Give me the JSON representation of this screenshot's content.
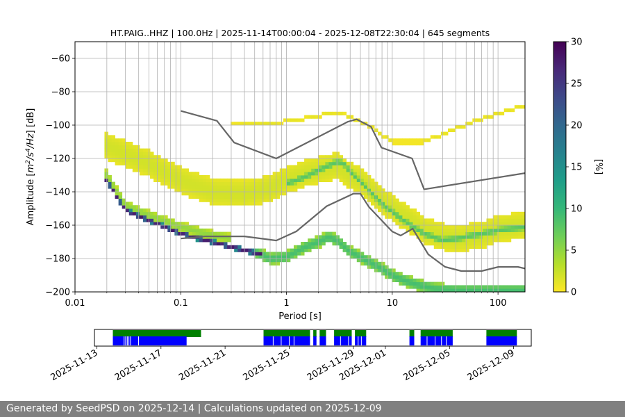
{
  "chart_data": [
    {
      "type": "heatmap",
      "title": "HT.PAIG..HHZ | 100.0Hz | 2025-11-14T00:00:04 - 2025-12-08T22:30:04 | 645 segments",
      "xlabel": "Period [s]",
      "ylabel_parts": [
        "Amplitude [",
        "m",
        "2",
        "/",
        "s",
        "4",
        "/",
        "Hz",
        "] [dB]"
      ],
      "xscale": "log",
      "xlim": [
        0.01,
        180
      ],
      "ylim": [
        -200,
        -50
      ],
      "x_ticks": [
        0.01,
        0.1,
        1,
        10,
        100
      ],
      "x_tick_labels": [
        "0.01",
        "0.1",
        "1",
        "10",
        "100"
      ],
      "y_ticks": [
        -200,
        -180,
        -160,
        -140,
        -120,
        -100,
        -80,
        -60
      ],
      "y_tick_labels": [
        "−200",
        "−180",
        "−160",
        "−140",
        "−120",
        "−100",
        "−80",
        "−60"
      ],
      "grid": true,
      "colorbar": {
        "label": "[%]",
        "range": [
          0,
          30
        ],
        "ticks": [
          0,
          5,
          10,
          15,
          20,
          25,
          30
        ],
        "tick_labels": [
          "0",
          "5",
          "10",
          "15",
          "20",
          "25",
          "30"
        ],
        "colormap": [
          "#fde725",
          "#b5de2b",
          "#6ece58",
          "#35b779",
          "#1f9e89",
          "#26828e",
          "#31688e",
          "#3e4989",
          "#482878",
          "#440154"
        ]
      },
      "nhnm": {
        "name": "NHNM",
        "color": "#666666",
        "x": [
          0.1,
          0.22,
          0.32,
          0.8,
          3.8,
          4.6,
          6.3,
          7.9,
          15.4,
          20,
          180
        ],
        "y": [
          -91.5,
          -97.4,
          -110.5,
          -120,
          -98,
          -96.5,
          -101,
          -113.5,
          -120,
          -138.5,
          -128.8
        ]
      },
      "nlnm": {
        "name": "NLNM",
        "color": "#666666",
        "x": [
          0.1,
          0.17,
          0.4,
          0.8,
          1.24,
          2.4,
          4.3,
          5,
          6,
          10,
          12,
          15.6,
          21.9,
          31.6,
          45,
          70,
          101,
          154,
          180
        ],
        "y": [
          -168,
          -166.7,
          -166.7,
          -169.2,
          -163.7,
          -148.6,
          -141.1,
          -141.1,
          -149,
          -163.8,
          -166.2,
          -162.1,
          -177.5,
          -185,
          -187.5,
          -187.5,
          -185,
          -185,
          -186
        ]
      },
      "density_bands": [
        {
          "name": "minimum-psd-edge",
          "x": [
            0.019,
            0.03,
            0.05,
            0.1,
            0.2,
            0.4,
            0.6
          ],
          "y": [
            -131,
            -151,
            -157,
            -165,
            -170,
            -175,
            -177.5
          ],
          "halfwidth_db": 1.5,
          "percent": 28
        },
        {
          "name": "secondary-low-band",
          "x": [
            0.019,
            0.03,
            0.05,
            0.1,
            0.2,
            0.3
          ],
          "y": [
            -128,
            -148,
            -154,
            -161,
            -166,
            -168
          ],
          "halfwidth_db": 3,
          "percent": 5
        },
        {
          "name": "mid-period-noise",
          "x": [
            0.5,
            0.7,
            1,
            1.5,
            2,
            2.5,
            3,
            4,
            5,
            6.5,
            8,
            10,
            13,
            18,
            25,
            40,
            70,
            120,
            180
          ],
          "y": [
            -176,
            -180,
            -179,
            -173,
            -170,
            -167,
            -169,
            -176,
            -179,
            -183,
            -186,
            -190,
            -193,
            -196,
            -198,
            -199,
            -199,
            -199,
            -199
          ],
          "halfwidth_db": 3.5,
          "percent": 9
        },
        {
          "name": "high-noise-background",
          "x": [
            0.019,
            0.05,
            0.1,
            0.2,
            0.4,
            0.7,
            1,
            1.5,
            2,
            3,
            4,
            5,
            6.5,
            8,
            10,
            15,
            20,
            30,
            40,
            70,
            100,
            180
          ],
          "y": [
            -112,
            -123,
            -133,
            -140,
            -141,
            -138,
            -133,
            -129,
            -127,
            -124,
            -130,
            -133,
            -140,
            -145,
            -150,
            -157,
            -163,
            -167,
            -168,
            -166,
            -162,
            -160
          ],
          "halfwidth_db": 8,
          "percent": 2
        },
        {
          "name": "microseism-peak",
          "x": [
            1,
            1.5,
            2,
            3,
            3.5,
            4,
            5,
            6.5,
            8,
            10,
            15,
            20,
            30,
            40,
            70,
            100,
            180
          ],
          "y": [
            -135,
            -131,
            -127,
            -122,
            -123,
            -128,
            -134,
            -141,
            -147,
            -152,
            -160,
            -165,
            -169,
            -168,
            -165,
            -163,
            -161
          ],
          "halfwidth_db": 2,
          "percent": 8
        },
        {
          "name": "high-period-scatter",
          "x": [
            0.3,
            0.7,
            1.5,
            3,
            6,
            10,
            20,
            40,
            80,
            180
          ],
          "y": [
            -100,
            -99,
            -96,
            -92,
            -100,
            -110,
            -110,
            -102,
            -95,
            -88
          ],
          "halfwidth_db": 1,
          "percent": 1
        }
      ],
      "data_extent": {
        "x": [
          0.019,
          180
        ],
        "y": [
          -200,
          -82
        ]
      }
    },
    {
      "type": "timeline",
      "name": "data-availability",
      "x_tick_labels": [
        "2025-11-13",
        "2025-11-17",
        "2025-11-21",
        "2025-11-25",
        "2025-11-29",
        "2025-12-01",
        "2025-12-05",
        "2025-12-09"
      ],
      "x_ticks_days": [
        0,
        4,
        8,
        12,
        16,
        18,
        22,
        26
      ],
      "xlim_days": [
        -0.15,
        27.1
      ],
      "series": [
        {
          "name": "used-segments",
          "color": "#0000ff",
          "segments": [
            [
              1,
              5.6
            ],
            [
              10.4,
              13.3
            ],
            [
              13.5,
              13.7
            ],
            [
              13.9,
              14.3
            ],
            [
              14.8,
              15.9
            ],
            [
              16.1,
              16.8
            ],
            [
              19.5,
              19.8
            ],
            [
              20.2,
              22.2
            ],
            [
              24.3,
              26.2
            ]
          ],
          "gaps": [
            1.7,
            1.8,
            1.9,
            2.0,
            2.1,
            2.6,
            11.0,
            11.5,
            12.0,
            12.3,
            15.2,
            15.7,
            16.3,
            16.5,
            20.6,
            21.1,
            21.5,
            21.8
          ]
        },
        {
          "name": "available-data",
          "color": "#008000",
          "segments": [
            [
              1,
              6.5
            ],
            [
              10.4,
              13.3
            ],
            [
              13.5,
              13.7
            ],
            [
              13.9,
              14.3
            ],
            [
              14.8,
              15.9
            ],
            [
              16.1,
              16.8
            ],
            [
              19.5,
              19.8
            ],
            [
              20.2,
              22.2
            ],
            [
              24.3,
              26.2
            ]
          ]
        }
      ]
    }
  ],
  "footer": {
    "text": "Generated by SeedPSD on 2025-12-14 | Calculations updated on 2025-12-09"
  }
}
